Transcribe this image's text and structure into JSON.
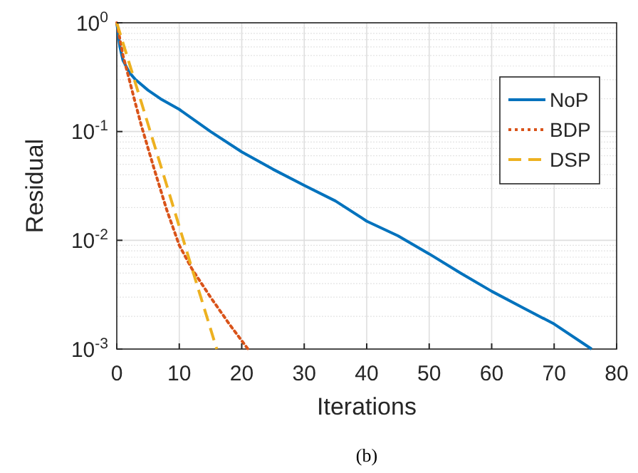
{
  "chart_data": {
    "type": "line",
    "xlabel": "Iterations",
    "ylabel": "Residual",
    "log": "y",
    "grid": true,
    "legend": "top right",
    "annotations": [
      "(b)"
    ],
    "xlim": [
      0,
      80
    ],
    "xticks": [
      0,
      10,
      20,
      30,
      40,
      50,
      60,
      70,
      80
    ],
    "ylim": [
      0.001,
      1
    ],
    "yticks": [
      {
        "value": 0.001,
        "label": "10$^{-3}$"
      },
      {
        "value": 0.01,
        "label": "10$^{-2}$"
      },
      {
        "value": 0.1,
        "label": "10$^{-1}$"
      },
      {
        "value": 1,
        "label": "10$^{0}$"
      }
    ],
    "series": [
      {
        "name": "NoP",
        "color": "#0072bd",
        "line_style": "solid",
        "x": [
          0,
          0.5,
          1,
          2,
          3,
          5,
          7,
          10,
          15,
          20,
          25,
          30,
          35,
          40,
          45,
          50,
          55,
          60,
          65,
          70,
          76
        ],
        "values": [
          1,
          0.6,
          0.45,
          0.35,
          0.3,
          0.24,
          0.2,
          0.16,
          0.1,
          0.065,
          0.045,
          0.032,
          0.023,
          0.015,
          0.011,
          0.0075,
          0.005,
          0.0034,
          0.0024,
          0.0017,
          0.001
        ]
      },
      {
        "name": "BDP",
        "color": "#d95319",
        "line_style": "dotted",
        "x": [
          0,
          1,
          2,
          3,
          4,
          6,
          8,
          10,
          12,
          15,
          18,
          21
        ],
        "values": [
          1,
          0.5,
          0.3,
          0.18,
          0.11,
          0.045,
          0.019,
          0.009,
          0.0055,
          0.003,
          0.0017,
          0.001
        ]
      },
      {
        "name": "DSP",
        "color": "#edb120",
        "line_style": "dashed",
        "x": [
          0,
          4,
          8,
          12,
          16
        ],
        "values": [
          1,
          0.18,
          0.032,
          0.0056,
          0.001
        ]
      }
    ]
  }
}
